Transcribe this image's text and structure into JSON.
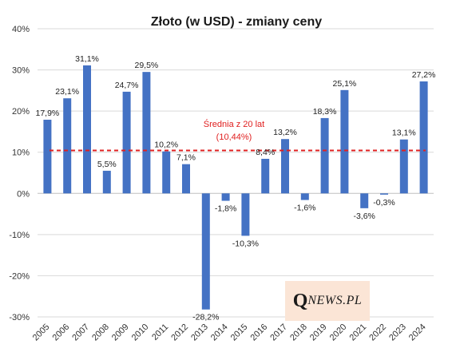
{
  "chart_data": {
    "type": "bar",
    "title": "Złoto (w USD) - zmiany ceny",
    "xlabel": "",
    "ylabel": "",
    "categories": [
      "2005",
      "2006",
      "2007",
      "2008",
      "2009",
      "2010",
      "2011",
      "2012",
      "2013",
      "2014",
      "2015",
      "2016",
      "2017",
      "2018",
      "2019",
      "2020",
      "2021",
      "2022",
      "2023",
      "2024"
    ],
    "values": [
      17.9,
      23.1,
      31.1,
      5.5,
      24.7,
      29.5,
      10.2,
      7.1,
      -28.2,
      -1.8,
      -10.3,
      8.4,
      13.2,
      -1.6,
      18.3,
      25.1,
      -3.6,
      -0.3,
      13.1,
      27.2
    ],
    "value_labels": [
      "17,9%",
      "23,1%",
      "31,1%",
      "5,5%",
      "24,7%",
      "29,5%",
      "10,2%",
      "7,1%",
      "-28,2%",
      "-1,8%",
      "-10,3%",
      "8,4%",
      "13,2%",
      "-1,6%",
      "18,3%",
      "25,1%",
      "-3,6%",
      "-0,3%",
      "13,1%",
      "27,2%"
    ],
    "ylim": [
      -30,
      40
    ],
    "yticks": [
      -30,
      -20,
      -10,
      0,
      10,
      20,
      30,
      40
    ],
    "ytick_labels": [
      "-30%",
      "-20%",
      "-10%",
      "0%",
      "10%",
      "20%",
      "30%",
      "40%"
    ],
    "grid": true,
    "bar_color": "#4472c4",
    "average": {
      "value": 10.44,
      "label_line1": "Średnia z 20 lat",
      "label_line2": "(10,44%)",
      "color": "#e02020",
      "style": "dashed"
    }
  },
  "logo": {
    "q": "Q",
    "rest": "NEWS.PL",
    "background": "#fbe5d6"
  }
}
